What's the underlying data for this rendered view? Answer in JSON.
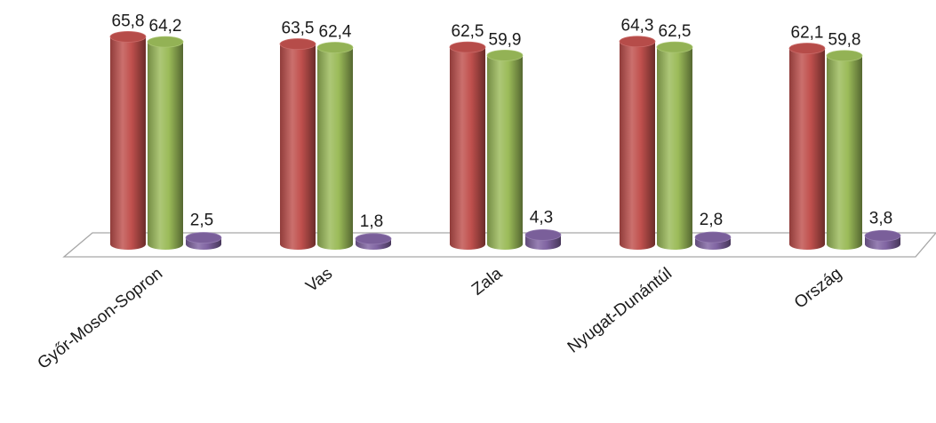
{
  "chart_data": {
    "type": "bar",
    "style": "3d-cylinder",
    "title": "",
    "xlabel": "",
    "ylabel": "",
    "grid": false,
    "legend": "none",
    "ylim": [
      0,
      70
    ],
    "categories": [
      "Győr-Moson-Sopron",
      "Vas",
      "Zala",
      "Nyugat-Dunántúl",
      "Ország"
    ],
    "series": [
      {
        "color": "#c0504d",
        "values": [
          65.8,
          63.5,
          62.5,
          64.3,
          62.1
        ],
        "labels": [
          "65,8",
          "63,5",
          "62,5",
          "64,3",
          "62,1"
        ]
      },
      {
        "color": "#9bbb59",
        "values": [
          64.2,
          62.4,
          59.9,
          62.5,
          59.8
        ],
        "labels": [
          "64,2",
          "62,4",
          "59,9",
          "62,5",
          "59,8"
        ]
      },
      {
        "color": "#8064a2",
        "values": [
          2.5,
          1.8,
          4.3,
          2.8,
          3.8
        ],
        "labels": [
          "2,5",
          "1,8",
          "4,3",
          "2,8",
          "3,8"
        ]
      }
    ]
  }
}
